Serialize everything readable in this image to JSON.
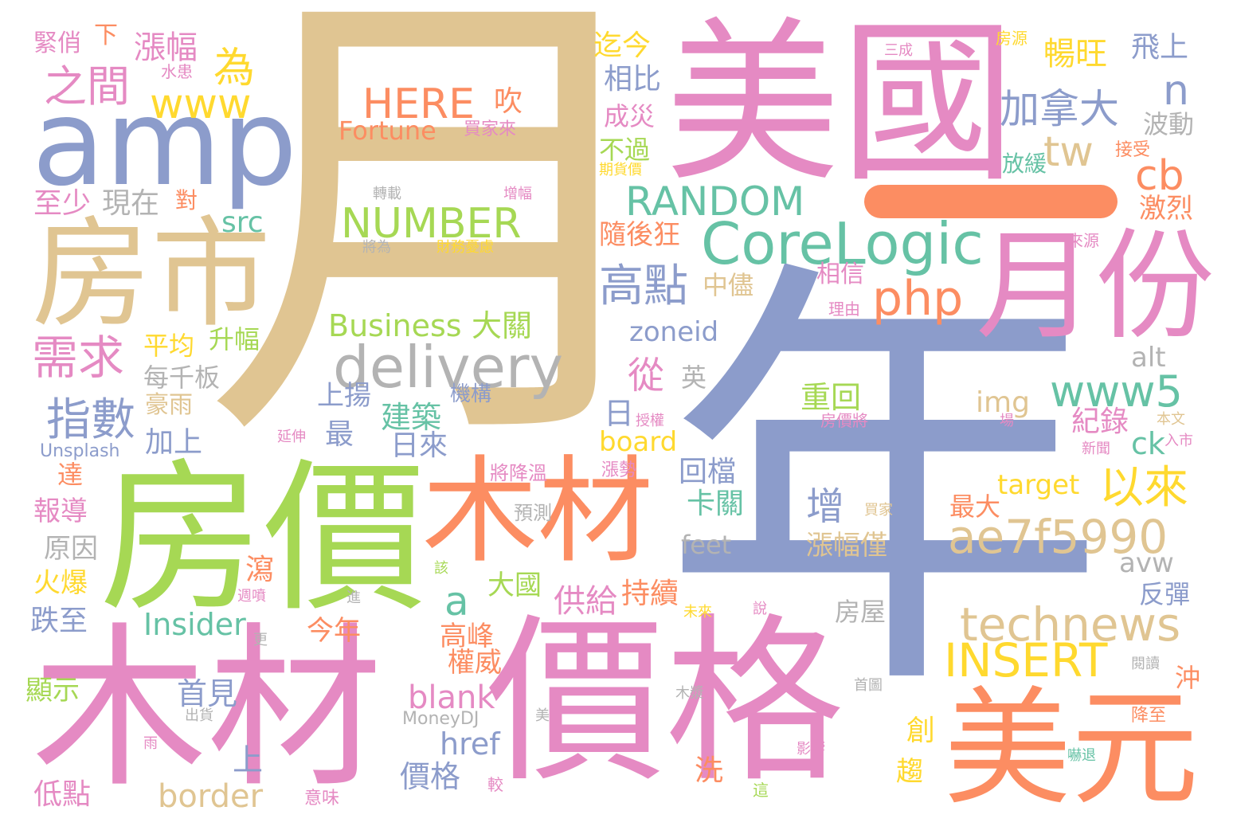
{
  "colors": {
    "tan": "#e0c592",
    "pink": "#e58ac3",
    "slate": "#8c9ccb",
    "green": "#a6d854",
    "orange": "#fc8d62",
    "yellow": "#ffd92f",
    "teal": "#66c2a5",
    "gray": "#b3b3b3"
  },
  "words": [
    {
      "text": "月",
      "color": "tan"
    },
    {
      "text": "年",
      "color": "slate"
    },
    {
      "text": "美國",
      "color": "pink"
    },
    {
      "text": "amp",
      "color": "slate"
    },
    {
      "text": "房市",
      "color": "tan"
    },
    {
      "text": "房價",
      "color": "green"
    },
    {
      "text": "木材",
      "color": "orange"
    },
    {
      "text": "木材",
      "color": "pink"
    },
    {
      "text": "價格",
      "color": "pink"
    },
    {
      "text": "月份",
      "color": "pink"
    },
    {
      "text": "美元",
      "color": "orange"
    },
    {
      "text": "CoreLogic",
      "color": "teal"
    },
    {
      "text": "delivery",
      "color": "gray"
    },
    {
      "text": "RANDOM",
      "color": "teal"
    },
    {
      "text": "NUMBER",
      "color": "green"
    },
    {
      "text": "HERE",
      "color": "orange"
    },
    {
      "text": "Fortune",
      "color": "orange"
    },
    {
      "text": "www",
      "color": "yellow"
    },
    {
      "text": "www5",
      "color": "teal"
    },
    {
      "text": "technews",
      "color": "tan"
    },
    {
      "text": "INSERT",
      "color": "yellow"
    },
    {
      "text": "ae7f5990",
      "color": "tan"
    },
    {
      "text": "php",
      "color": "orange"
    },
    {
      "text": "以來",
      "color": "yellow"
    },
    {
      "text": "加拿大",
      "color": "slate"
    },
    {
      "text": "高點",
      "color": "slate"
    },
    {
      "text": "需求",
      "color": "pink"
    },
    {
      "text": "指數",
      "color": "slate"
    },
    {
      "text": "之間",
      "color": "pink"
    },
    {
      "text": "為",
      "color": "yellow"
    },
    {
      "text": "漲幅",
      "color": "pink"
    },
    {
      "text": "緊俏",
      "color": "pink"
    },
    {
      "text": "下",
      "color": "orange"
    },
    {
      "text": "至少",
      "color": "pink"
    },
    {
      "text": "現在",
      "color": "gray"
    },
    {
      "text": "對",
      "color": "orange"
    },
    {
      "text": "src",
      "color": "teal"
    },
    {
      "text": "tw",
      "color": "tan"
    },
    {
      "text": "cb",
      "color": "orange"
    },
    {
      "text": "n",
      "color": "slate"
    },
    {
      "text": "暢旺",
      "color": "yellow"
    },
    {
      "text": "飛上",
      "color": "slate"
    },
    {
      "text": "迄今",
      "color": "yellow"
    },
    {
      "text": "相比",
      "color": "slate"
    },
    {
      "text": "成災",
      "color": "pink"
    },
    {
      "text": "不過",
      "color": "green"
    },
    {
      "text": "隨後狂",
      "color": "orange"
    },
    {
      "text": "Business",
      "color": "green"
    },
    {
      "text": "大關",
      "color": "green"
    },
    {
      "text": "zoneid",
      "color": "slate"
    },
    {
      "text": "從",
      "color": "pink"
    },
    {
      "text": "英",
      "color": "gray"
    },
    {
      "text": "a",
      "color": "teal"
    },
    {
      "text": "重回",
      "color": "green"
    },
    {
      "text": "img",
      "color": "tan"
    },
    {
      "text": "alt",
      "color": "gray"
    },
    {
      "text": "日",
      "color": "slate"
    },
    {
      "text": "建築",
      "color": "teal"
    },
    {
      "text": "日來",
      "color": "slate"
    },
    {
      "text": "board",
      "color": "yellow"
    },
    {
      "text": "紀錄",
      "color": "pink"
    },
    {
      "text": "ck",
      "color": "teal"
    },
    {
      "text": "target",
      "color": "yellow"
    },
    {
      "text": "回檔",
      "color": "slate"
    },
    {
      "text": "卡關",
      "color": "teal"
    },
    {
      "text": "增",
      "color": "slate"
    },
    {
      "text": "最",
      "color": "slate"
    },
    {
      "text": "上揚",
      "color": "slate"
    },
    {
      "text": "加上",
      "color": "slate"
    },
    {
      "text": "平均",
      "color": "yellow"
    },
    {
      "text": "升幅",
      "color": "green"
    },
    {
      "text": "每千板",
      "color": "gray"
    },
    {
      "text": "豪雨",
      "color": "tan"
    },
    {
      "text": "機構",
      "color": "slate"
    },
    {
      "text": "中儘",
      "color": "tan"
    },
    {
      "text": "相信",
      "color": "pink"
    },
    {
      "text": "波動",
      "color": "gray"
    },
    {
      "text": "激烈",
      "color": "orange"
    },
    {
      "text": "放緩",
      "color": "teal"
    },
    {
      "text": "接受",
      "color": "orange"
    },
    {
      "text": "最大",
      "color": "orange"
    },
    {
      "text": "漲幅僅",
      "color": "tan"
    },
    {
      "text": "feet",
      "color": "gray"
    },
    {
      "text": "avw",
      "color": "gray"
    },
    {
      "text": "反彈",
      "color": "slate"
    },
    {
      "text": "房屋",
      "color": "gray"
    },
    {
      "text": "沖",
      "color": "orange"
    },
    {
      "text": "供給",
      "color": "pink"
    },
    {
      "text": "持續",
      "color": "orange"
    },
    {
      "text": "高峰",
      "color": "orange"
    },
    {
      "text": "權威",
      "color": "orange"
    },
    {
      "text": "今年",
      "color": "orange"
    },
    {
      "text": "大國",
      "color": "green"
    },
    {
      "text": "blank",
      "color": "pink"
    },
    {
      "text": "href",
      "color": "slate"
    },
    {
      "text": "價格",
      "color": "slate"
    },
    {
      "text": "border",
      "color": "tan"
    },
    {
      "text": "首見",
      "color": "slate"
    },
    {
      "text": "上",
      "color": "slate"
    },
    {
      "text": "Insider",
      "color": "teal"
    },
    {
      "text": "瀉",
      "color": "orange"
    },
    {
      "text": "洗",
      "color": "orange"
    },
    {
      "text": "創",
      "color": "yellow"
    },
    {
      "text": "趨",
      "color": "yellow"
    },
    {
      "text": "達",
      "color": "orange"
    },
    {
      "text": "報導",
      "color": "pink"
    },
    {
      "text": "原因",
      "color": "gray"
    },
    {
      "text": "火爆",
      "color": "yellow"
    },
    {
      "text": "跌至",
      "color": "slate"
    },
    {
      "text": "顯示",
      "color": "green"
    },
    {
      "text": "低點",
      "color": "pink"
    },
    {
      "text": "Unsplash",
      "color": "slate"
    },
    {
      "text": "MoneyDJ",
      "color": "gray"
    },
    {
      "text": "預測",
      "color": "gray"
    },
    {
      "text": "將降溫",
      "color": "pink"
    },
    {
      "text": "漲勢",
      "color": "pink"
    },
    {
      "text": "吹",
      "color": "orange"
    },
    {
      "text": "買家來",
      "color": "pink"
    },
    {
      "text": "轉載",
      "color": "gray"
    },
    {
      "text": "增幅",
      "color": "pink"
    },
    {
      "text": "將為",
      "color": "gray"
    },
    {
      "text": "財務憂慮",
      "color": "yellow"
    },
    {
      "text": "水患",
      "color": "pink"
    },
    {
      "text": "房源",
      "color": "yellow"
    },
    {
      "text": "三成",
      "color": "pink"
    },
    {
      "text": "期貨價",
      "color": "yellow"
    },
    {
      "text": "來源",
      "color": "pink"
    },
    {
      "text": "理由",
      "color": "pink"
    },
    {
      "text": "授權",
      "color": "pink"
    },
    {
      "text": "房價將",
      "color": "pink"
    },
    {
      "text": "本文",
      "color": "tan"
    },
    {
      "text": "入市",
      "color": "pink"
    },
    {
      "text": "新聞",
      "color": "pink"
    },
    {
      "text": "場",
      "color": "pink"
    },
    {
      "text": "買家",
      "color": "tan"
    },
    {
      "text": "延伸",
      "color": "pink"
    },
    {
      "text": "週噴",
      "color": "pink"
    },
    {
      "text": "進",
      "color": "gray"
    },
    {
      "text": "該",
      "color": "green"
    },
    {
      "text": "說",
      "color": "pink"
    },
    {
      "text": "未來",
      "color": "yellow"
    },
    {
      "text": "更",
      "color": "gray"
    },
    {
      "text": "木漿",
      "color": "gray"
    },
    {
      "text": "首圖",
      "color": "gray"
    },
    {
      "text": "閱讀",
      "color": "gray"
    },
    {
      "text": "出貨",
      "color": "gray"
    },
    {
      "text": "雨",
      "color": "pink"
    },
    {
      "text": "美",
      "color": "gray"
    },
    {
      "text": "影響",
      "color": "pink"
    },
    {
      "text": "嚇退",
      "color": "teal"
    },
    {
      "text": "降至",
      "color": "orange"
    },
    {
      "text": "較",
      "color": "pink"
    },
    {
      "text": "意味",
      "color": "pink"
    },
    {
      "text": "這",
      "color": "green"
    }
  ]
}
